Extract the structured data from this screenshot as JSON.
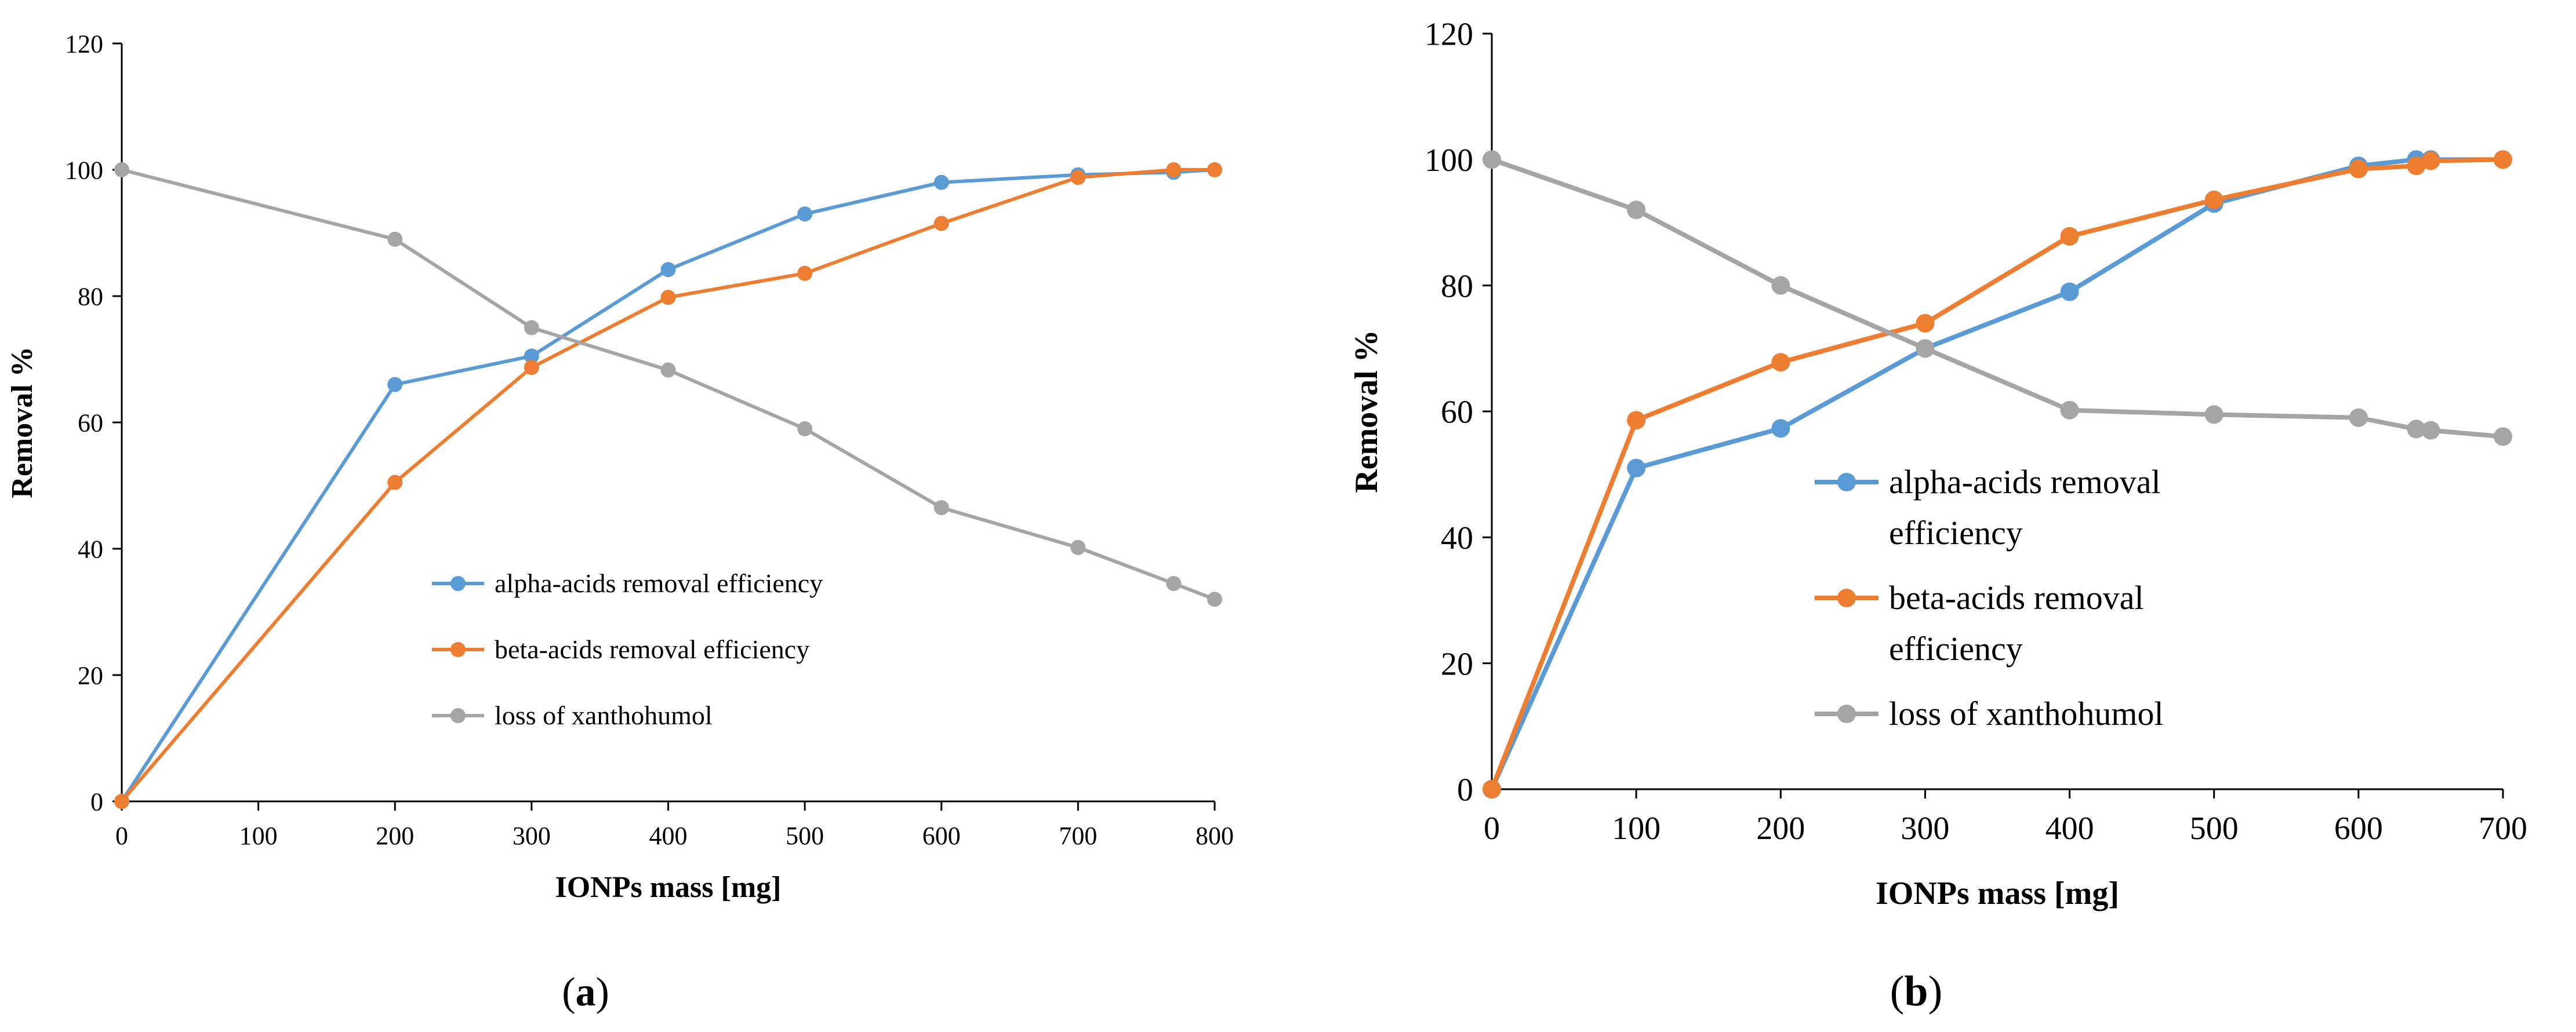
{
  "chart_data": [
    {
      "type": "line",
      "panel_label": "a",
      "title": "",
      "xlabel": "IONPs mass [mg]",
      "ylabel": "Removal %",
      "xlim": [
        0,
        800
      ],
      "ylim": [
        0,
        120
      ],
      "xticks": [
        "0",
        "100",
        "200",
        "300",
        "400",
        "500",
        "600",
        "700",
        "800"
      ],
      "yticks": [
        "0",
        "20",
        "40",
        "60",
        "80",
        "100",
        "120"
      ],
      "grid": false,
      "legend_position": "center-right",
      "series": [
        {
          "name": "alpha-acids removal efficiency",
          "color": "#5B9BD5",
          "x": [
            0,
            200,
            300,
            400,
            500,
            600,
            700,
            770,
            800
          ],
          "y": [
            0,
            66,
            70.5,
            84.2,
            93,
            98,
            99.2,
            99.6,
            100
          ]
        },
        {
          "name": "beta-acids removal efficiency",
          "color": "#ED7D31",
          "x": [
            0,
            200,
            300,
            400,
            500,
            600,
            700,
            770,
            800
          ],
          "y": [
            0,
            50.5,
            68.7,
            79.8,
            83.6,
            91.5,
            98.8,
            100,
            100
          ]
        },
        {
          "name": "loss of xanthohumol",
          "color": "#A5A5A5",
          "x": [
            0,
            200,
            300,
            400,
            500,
            600,
            700,
            770,
            800
          ],
          "y": [
            100,
            89,
            75,
            68.3,
            59,
            46.5,
            40.2,
            34.5,
            32
          ]
        }
      ]
    },
    {
      "type": "line",
      "panel_label": "b",
      "title": "",
      "xlabel": "IONPs mass [mg]",
      "ylabel": "Removal %",
      "xlim": [
        0,
        700
      ],
      "ylim": [
        0,
        120
      ],
      "xticks": [
        "0",
        "100",
        "200",
        "300",
        "400",
        "500",
        "600",
        "700"
      ],
      "yticks": [
        "0",
        "20",
        "40",
        "60",
        "80",
        "100",
        "120"
      ],
      "grid": false,
      "legend_position": "center-right",
      "series": [
        {
          "name": "alpha-acids removal efficiency",
          "color": "#5B9BD5",
          "x": [
            0,
            100,
            200,
            300,
            400,
            500,
            600,
            640,
            650,
            700
          ],
          "y": [
            0,
            51,
            57.3,
            70,
            79,
            93,
            99,
            100,
            100,
            100
          ]
        },
        {
          "name": "beta-acids removal efficiency",
          "color": "#ED7D31",
          "x": [
            0,
            100,
            200,
            300,
            400,
            500,
            600,
            640,
            650,
            700
          ],
          "y": [
            0,
            58.6,
            67.8,
            74,
            87.8,
            93.6,
            98.5,
            99,
            99.8,
            100
          ]
        },
        {
          "name": "loss of xanthohumol",
          "color": "#A5A5A5",
          "x": [
            0,
            100,
            200,
            300,
            400,
            500,
            600,
            640,
            650,
            700
          ],
          "y": [
            100,
            92,
            80,
            70,
            60.2,
            59.5,
            59,
            57.2,
            57,
            56
          ]
        }
      ]
    }
  ]
}
